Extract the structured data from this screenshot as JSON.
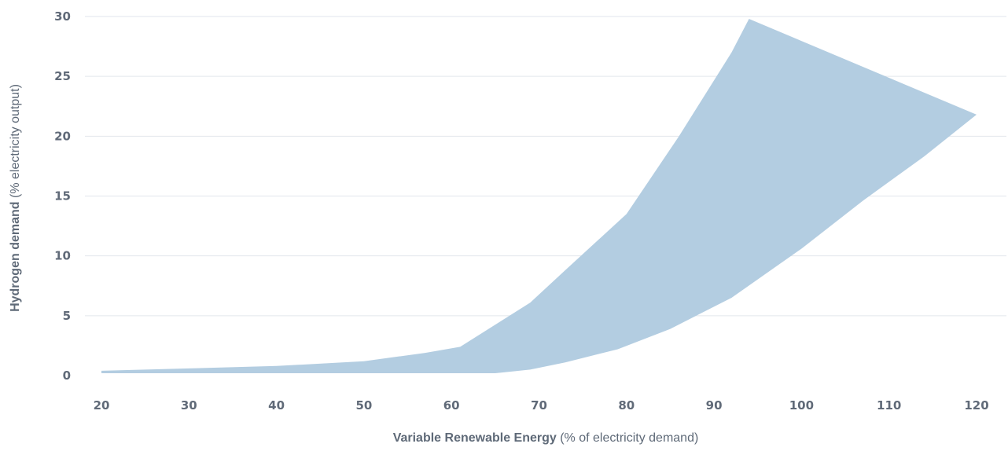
{
  "chart_data": {
    "type": "area",
    "xlabel": {
      "bold": "Variable Renewable Energy",
      "normal": " (%  of electricity demand)"
    },
    "ylabel": {
      "bold": "Hydrogen demand",
      "normal": " (% electricity output)"
    },
    "xlim": [
      20,
      120
    ],
    "ylim": [
      0,
      30
    ],
    "x_ticks": [
      20,
      30,
      40,
      50,
      60,
      70,
      80,
      90,
      100,
      110,
      120
    ],
    "y_ticks": [
      0,
      5,
      10,
      15,
      20,
      25,
      30
    ],
    "grid": "horizontal",
    "series": [
      {
        "upper": [
          [
            20,
            0.4
          ],
          [
            30,
            0.6
          ],
          [
            40,
            0.8
          ],
          [
            50,
            1.2
          ],
          [
            57,
            1.9
          ],
          [
            61,
            2.4
          ],
          [
            69,
            6.1
          ],
          [
            73,
            8.8
          ],
          [
            80,
            13.5
          ],
          [
            86,
            20.0
          ],
          [
            92,
            27.0
          ],
          [
            94,
            29.8
          ],
          [
            120,
            21.8
          ]
        ],
        "lower": [
          [
            20,
            0.2
          ],
          [
            30,
            0.2
          ],
          [
            40,
            0.2
          ],
          [
            50,
            0.2
          ],
          [
            60,
            0.2
          ],
          [
            65,
            0.2
          ],
          [
            69,
            0.5
          ],
          [
            73,
            1.1
          ],
          [
            79,
            2.2
          ],
          [
            85,
            3.9
          ],
          [
            92,
            6.5
          ],
          [
            100,
            10.6
          ],
          [
            107,
            14.6
          ],
          [
            114,
            18.3
          ],
          [
            120,
            21.8
          ]
        ],
        "color": "#b3cde1"
      }
    ]
  }
}
